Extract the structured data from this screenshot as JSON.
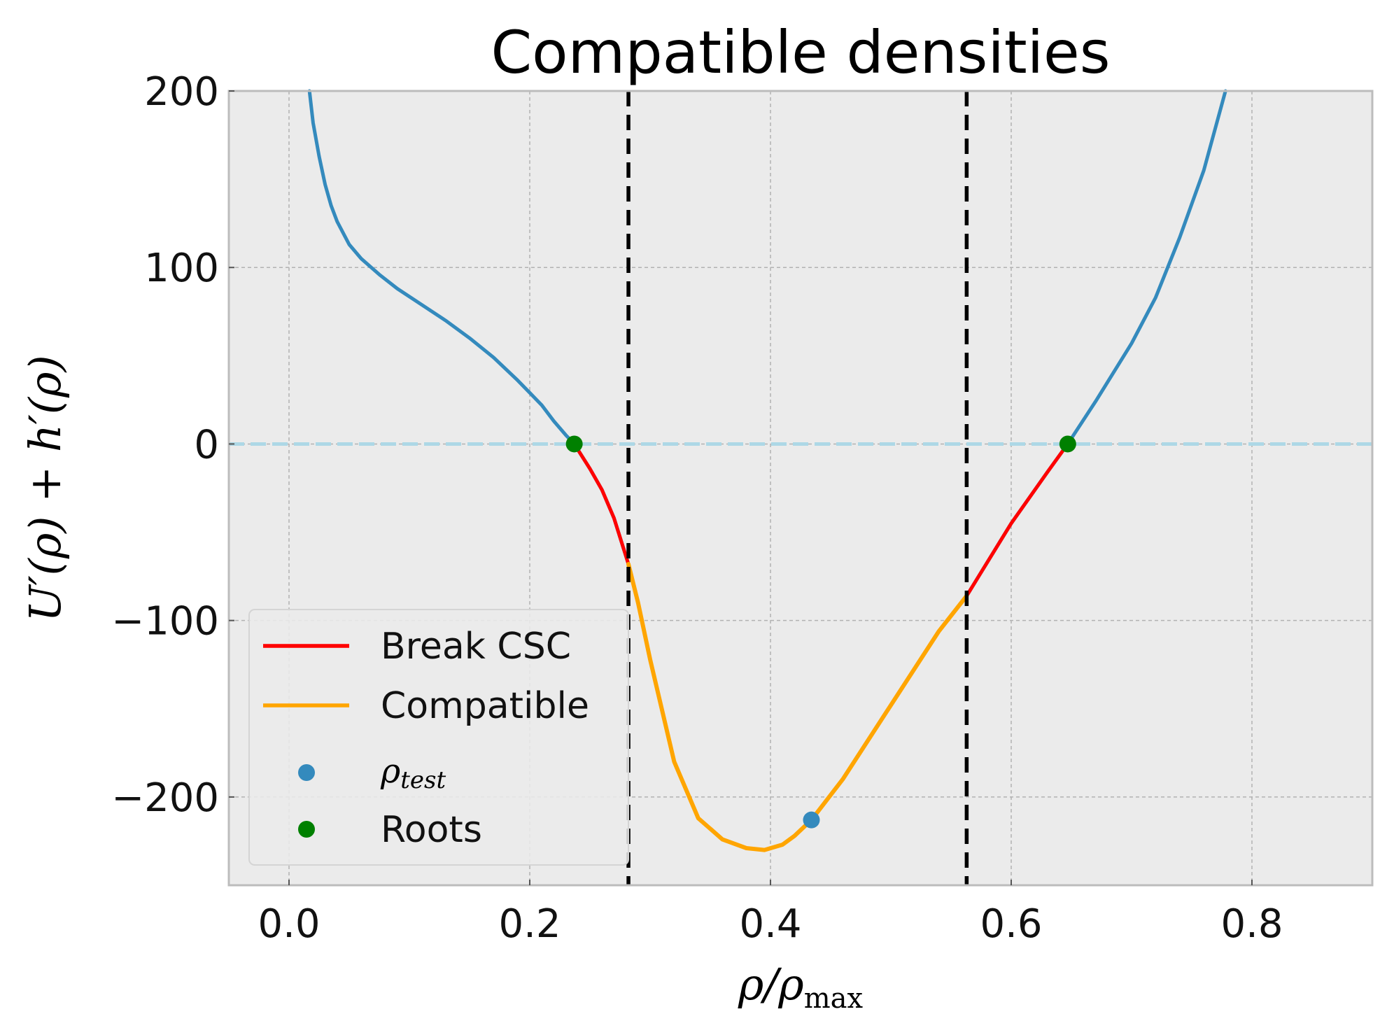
{
  "chart_data": {
    "type": "line",
    "title": "Compatible densities",
    "xlabel": {
      "base": "ρ/ρ",
      "sub": "max"
    },
    "ylabel": "U′(ρ) + h′(ρ)",
    "xlim": [
      -0.05,
      0.9
    ],
    "ylim": [
      -250,
      200
    ],
    "xticks": [
      0.0,
      0.2,
      0.4,
      0.6,
      0.8
    ],
    "xtick_labels": [
      "0.0",
      "0.2",
      "0.4",
      "0.6",
      "0.8"
    ],
    "yticks": [
      200,
      100,
      0,
      -100,
      -200
    ],
    "ytick_labels": [
      "200",
      "100",
      "0",
      "−100",
      "−200"
    ],
    "grid": true,
    "legend_position": "lower-left",
    "colors": {
      "function": "#348abd",
      "break_csc": "#ff0000",
      "compatible": "#ffa500",
      "rho_test": "#348abd",
      "roots": "#008000",
      "vlines": "#000000",
      "zero_line": "#add8e6",
      "axes_bg": "#ebebeb"
    },
    "series": [
      {
        "role": "function",
        "x": [
          0.017,
          0.02,
          0.025,
          0.03,
          0.035,
          0.04,
          0.05,
          0.06,
          0.075,
          0.09,
          0.11,
          0.13,
          0.15,
          0.17,
          0.19,
          0.2,
          0.21,
          0.22,
          0.23,
          0.237,
          0.25,
          0.26,
          0.27,
          0.282,
          0.29,
          0.3,
          0.32,
          0.34,
          0.36,
          0.38,
          0.395,
          0.41,
          0.42,
          0.434,
          0.46,
          0.5,
          0.54,
          0.563,
          0.6,
          0.63,
          0.647,
          0.67,
          0.7,
          0.72,
          0.74,
          0.76,
          0.778
        ],
        "y": [
          200,
          182,
          163,
          147,
          135,
          126,
          113,
          105,
          96,
          88,
          79,
          70,
          60,
          49,
          36,
          29,
          22,
          13,
          5,
          0,
          -14,
          -26,
          -42,
          -68,
          -90,
          -122,
          -180,
          -212,
          -224,
          -229,
          -230,
          -227,
          -222,
          -213,
          -190,
          -148,
          -106,
          -86,
          -45,
          -16,
          0,
          24,
          57,
          83,
          117,
          155,
          200
        ]
      },
      {
        "name": "Break CSC",
        "x": [
          0.237,
          0.25,
          0.26,
          0.27,
          0.282
        ],
        "y": [
          0,
          -14,
          -26,
          -42,
          -68
        ]
      },
      {
        "name": "Break CSC",
        "x": [
          0.563,
          0.6,
          0.63,
          0.647
        ],
        "y": [
          -86,
          -45,
          -16,
          0
        ]
      },
      {
        "name": "Compatible",
        "x": [
          0.282,
          0.29,
          0.3,
          0.32,
          0.34,
          0.36,
          0.38,
          0.395,
          0.41,
          0.42,
          0.434,
          0.46,
          0.5,
          0.54,
          0.563
        ],
        "y": [
          -68,
          -90,
          -122,
          -180,
          -212,
          -224,
          -229,
          -230,
          -227,
          -222,
          -213,
          -190,
          -148,
          -106,
          -86
        ]
      }
    ],
    "points": [
      {
        "name": "ρ_test",
        "x": 0.434,
        "y": -213
      },
      {
        "name": "Roots",
        "x": 0.237,
        "y": 0
      },
      {
        "name": "Roots",
        "x": 0.647,
        "y": 0
      }
    ],
    "vlines": [
      0.282,
      0.563
    ],
    "hline": 0,
    "legend": [
      {
        "label": "Break CSC",
        "kind": "line",
        "color_key": "break_csc"
      },
      {
        "label": "Compatible",
        "kind": "line",
        "color_key": "compatible"
      },
      {
        "label": {
          "base": "ρ",
          "sub": "test"
        },
        "kind": "marker",
        "color_key": "rho_test"
      },
      {
        "label": "Roots",
        "kind": "marker",
        "color_key": "roots"
      }
    ]
  }
}
